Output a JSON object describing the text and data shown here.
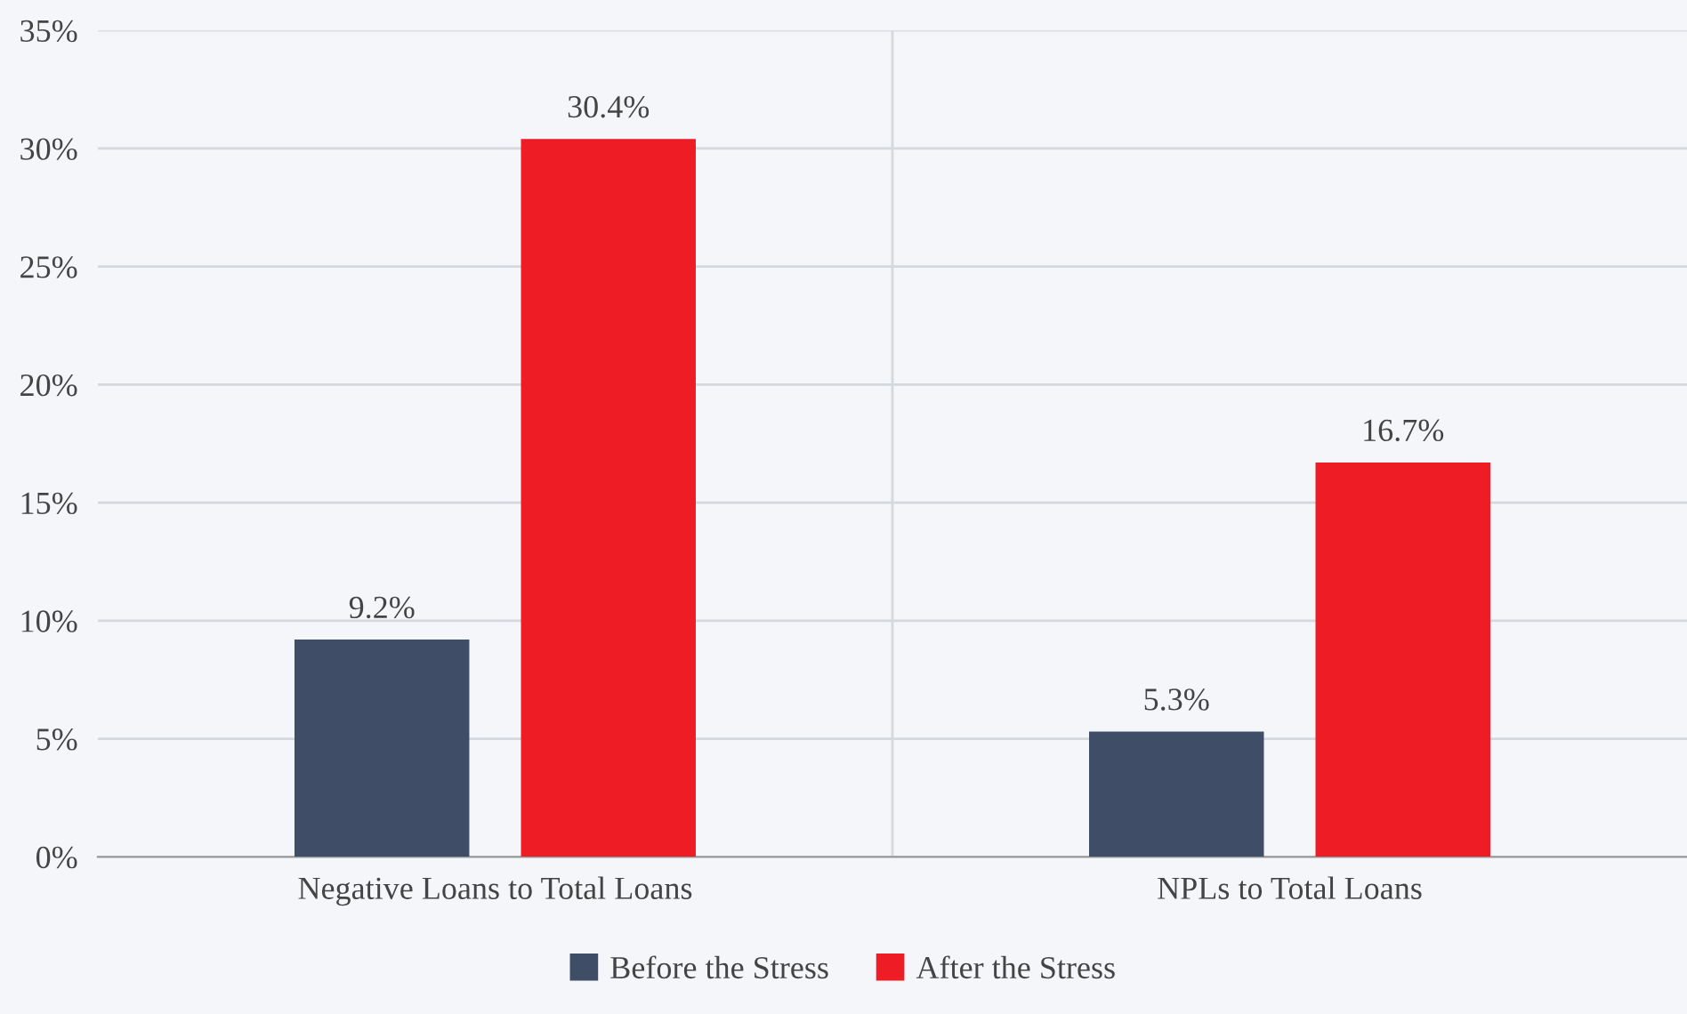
{
  "chart_data": {
    "type": "bar",
    "categories": [
      "Negative Loans to Total Loans",
      "NPLs to Total Loans"
    ],
    "series": [
      {
        "name": "Before the Stress",
        "color": "#3f4e66",
        "values": [
          9.2,
          5.3
        ],
        "value_labels": [
          "9.2%",
          "5.3%"
        ]
      },
      {
        "name": "After the Stress",
        "color": "#ee1c24",
        "values": [
          30.4,
          16.7
        ],
        "value_labels": [
          "30.4%",
          "16.7%"
        ]
      }
    ],
    "ylim": [
      0,
      35
    ],
    "yticks": [
      {
        "value": 0,
        "label": "0%"
      },
      {
        "value": 5,
        "label": "5%"
      },
      {
        "value": 10,
        "label": "10%"
      },
      {
        "value": 15,
        "label": "15%"
      },
      {
        "value": 20,
        "label": "20%"
      },
      {
        "value": 25,
        "label": "25%"
      },
      {
        "value": 30,
        "label": "30%"
      },
      {
        "value": 35,
        "label": "35%"
      }
    ],
    "grid": true,
    "legend": "bottom"
  }
}
